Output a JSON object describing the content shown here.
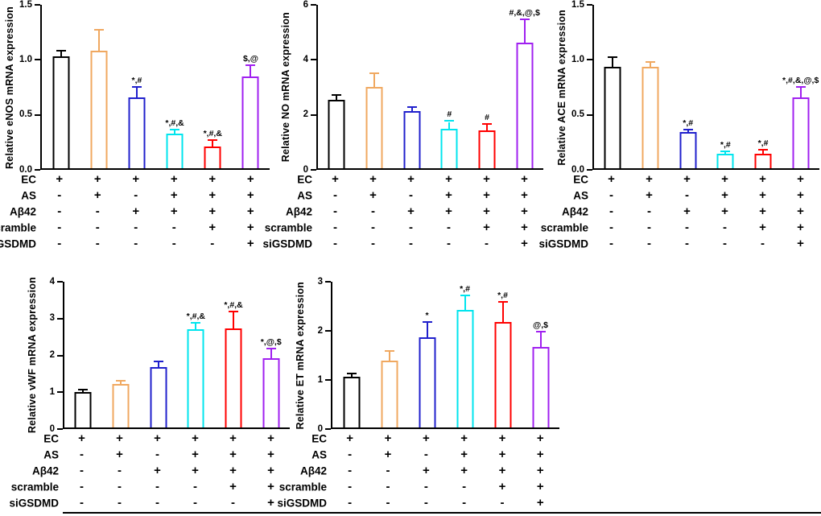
{
  "figure": {
    "bar_colors": [
      "#000000",
      "#F0A860",
      "#2020CC",
      "#00E5EE",
      "#FF0000",
      "#A020F0"
    ],
    "conditions": {
      "labels": [
        "EC",
        "AS",
        "Aβ42",
        "scramble",
        "siGSDMD"
      ],
      "matrix": [
        [
          "+",
          "+",
          "+",
          "+",
          "+",
          "+"
        ],
        [
          "-",
          "+",
          "-",
          "+",
          "+",
          "+"
        ],
        [
          "-",
          "-",
          "+",
          "+",
          "+",
          "+"
        ],
        [
          "-",
          "-",
          "-",
          "-",
          "+",
          "+"
        ],
        [
          "-",
          "-",
          "-",
          "-",
          "-",
          "+"
        ]
      ]
    }
  },
  "chart_data": [
    {
      "type": "bar",
      "id": "eNOS",
      "ylabel": "Relative eNOS mRNA expression",
      "xlabel": "",
      "ylim": [
        0,
        1.5
      ],
      "yticks": [
        0,
        0.5,
        1.0,
        1.5
      ],
      "ytick_labels": [
        "0.0",
        "0.5",
        "1.0",
        "1.5"
      ],
      "grid": false,
      "legend": "none",
      "values": [
        1.03,
        1.08,
        0.65,
        0.32,
        0.2,
        0.84
      ],
      "errors": [
        0.04,
        0.18,
        0.09,
        0.03,
        0.05,
        0.1
      ],
      "annotations": [
        "",
        "",
        "*,#",
        "*,#,&",
        "*,#,&",
        "$,@"
      ]
    },
    {
      "type": "bar",
      "id": "NO",
      "ylabel": "Relative NO mRNA expression",
      "xlabel": "",
      "ylim": [
        0,
        6
      ],
      "yticks": [
        0,
        2,
        4,
        6
      ],
      "ytick_labels": [
        "0",
        "2",
        "4",
        "6"
      ],
      "grid": false,
      "legend": "none",
      "values": [
        2.5,
        3.0,
        2.1,
        1.45,
        1.4,
        4.6
      ],
      "errors": [
        0.15,
        0.45,
        0.12,
        0.25,
        0.2,
        0.85
      ],
      "annotations": [
        "",
        "",
        "",
        "#",
        "#",
        "#,&,@,$"
      ]
    },
    {
      "type": "bar",
      "id": "ACE",
      "ylabel": "Relative ACE mRNA expression",
      "xlabel": "",
      "ylim": [
        0,
        1.5
      ],
      "yticks": [
        0,
        0.5,
        1.0,
        1.5
      ],
      "ytick_labels": [
        "0.0",
        "0.5",
        "1.0",
        "1.5"
      ],
      "grid": false,
      "legend": "none",
      "values": [
        0.93,
        0.93,
        0.33,
        0.13,
        0.13,
        0.65
      ],
      "errors": [
        0.08,
        0.04,
        0.02,
        0.02,
        0.03,
        0.09
      ],
      "annotations": [
        "",
        "",
        "*,#",
        "*,#",
        "*,#",
        "*,#,&,@,$"
      ]
    },
    {
      "type": "bar",
      "id": "vWF",
      "ylabel": "Relative vWF mRNA expression",
      "xlabel": "",
      "ylim": [
        0,
        4
      ],
      "yticks": [
        0,
        1,
        2,
        3,
        4
      ],
      "ytick_labels": [
        "0",
        "1",
        "2",
        "3",
        "4"
      ],
      "grid": false,
      "legend": "none",
      "values": [
        0.97,
        1.2,
        1.65,
        2.7,
        2.72,
        1.9
      ],
      "errors": [
        0.05,
        0.05,
        0.15,
        0.15,
        0.45,
        0.25
      ],
      "annotations": [
        "",
        "",
        "",
        "*,#,&",
        "*,#,&",
        "*,@,$"
      ]
    },
    {
      "type": "bar",
      "id": "ET",
      "ylabel": "Relative ET mRNA expression",
      "xlabel": "",
      "ylim": [
        0,
        3
      ],
      "yticks": [
        0,
        1,
        2,
        3
      ],
      "ytick_labels": [
        "0",
        "1",
        "2",
        "3"
      ],
      "grid": false,
      "legend": "none",
      "values": [
        1.05,
        1.38,
        1.85,
        2.42,
        2.17,
        1.65
      ],
      "errors": [
        0.05,
        0.18,
        0.3,
        0.28,
        0.4,
        0.3
      ],
      "annotations": [
        "",
        "",
        "*",
        "*,#",
        "*,#",
        "@,$"
      ]
    }
  ]
}
